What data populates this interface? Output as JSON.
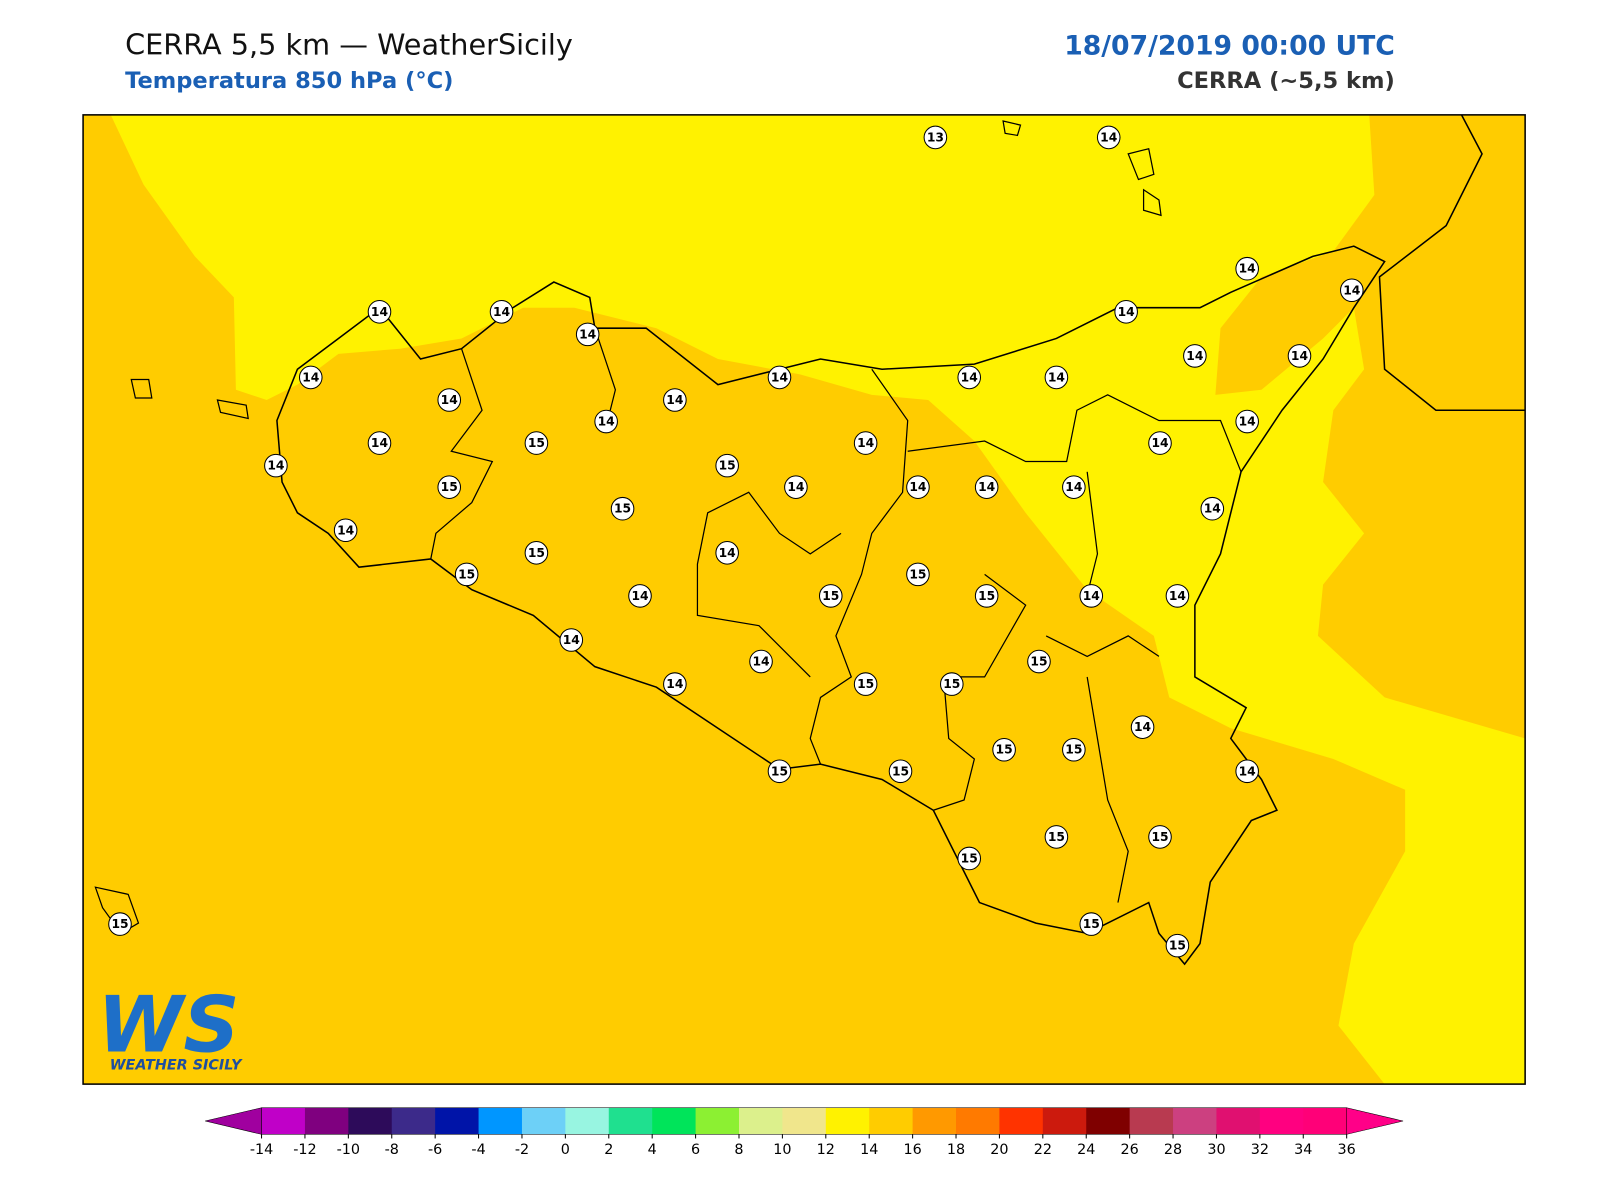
{
  "header": {
    "title": "CERRA 5,5 km — WeatherSicily",
    "subtitle": "Temperatura 850 hPa (°C)",
    "datetime": "18/07/2019 00:00 UTC",
    "model": "CERRA (~5,5 km)"
  },
  "stations": [
    13,
    14,
    14,
    14,
    14,
    14,
    14,
    14,
    14,
    14,
    14,
    14,
    14,
    14,
    14,
    14,
    14,
    14,
    14,
    15,
    14,
    14,
    14,
    15,
    15,
    14,
    14,
    14,
    14,
    15,
    14,
    14,
    15,
    14,
    15,
    15,
    14,
    15,
    15,
    14,
    14,
    15,
    14,
    14,
    14,
    15,
    15,
    14,
    15,
    15,
    14,
    15,
    15,
    15,
    15,
    15,
    15,
    15,
    15
  ],
  "map_colors": {
    "low": "#ffcc00",
    "high": "#fff200"
  },
  "colorbar": {
    "under": "#a0009f",
    "over": "#ff0088",
    "colors": [
      "#c000c8",
      "#7f007f",
      "#2d0b5a",
      "#3c2a8a",
      "#0014a8",
      "#0096ff",
      "#6dd0f7",
      "#98f5e1",
      "#1fe08f",
      "#00e45a",
      "#8cf032",
      "#dcf08c",
      "#f0e68c",
      "#fff200",
      "#ffcc00",
      "#ff9900",
      "#ff7a00",
      "#ff3300",
      "#cc1a0d",
      "#7f0000",
      "#b83a50",
      "#cc4080",
      "#e01070",
      "#ff0080",
      "#ff0078"
    ],
    "ticks": [
      -14,
      -12,
      -10,
      -8,
      -6,
      -4,
      -2,
      0,
      2,
      4,
      6,
      8,
      10,
      12,
      14,
      16,
      18,
      20,
      22,
      24,
      26,
      28,
      30,
      32,
      34,
      36
    ]
  },
  "logo": {
    "mark": "WS",
    "text": "WEATHER SICILY"
  }
}
